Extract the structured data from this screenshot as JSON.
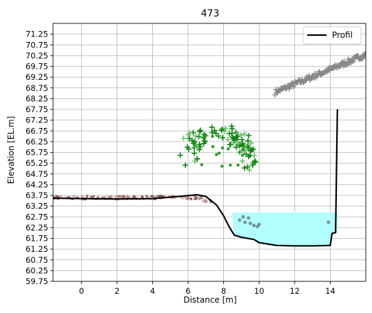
{
  "chart_data": {
    "type": "line",
    "title": "473",
    "xlabel": "Distance [m]",
    "ylabel": "Elevation [EL.m]",
    "xlim": [
      -1.6,
      16.0
    ],
    "ylim": [
      59.75,
      71.75
    ],
    "grid": true,
    "legend_position": "top-right",
    "x_ticks": [
      0,
      2,
      4,
      6,
      8,
      10,
      12,
      14
    ],
    "x_tick_labels": [
      "0",
      "2",
      "4",
      "6",
      "8",
      "10",
      "12",
      "14"
    ],
    "y_ticks": [
      59.75,
      60.25,
      60.75,
      61.25,
      61.75,
      62.25,
      62.75,
      63.25,
      63.75,
      64.25,
      64.75,
      65.25,
      65.75,
      66.25,
      66.75,
      67.25,
      67.75,
      68.25,
      68.75,
      69.25,
      69.75,
      70.25,
      70.75,
      71.25
    ],
    "y_tick_labels": [
      "59.75",
      "60.25",
      "60.75",
      "61.25",
      "61.75",
      "62.25",
      "62.75",
      "63.25",
      "63.75",
      "64.25",
      "64.75",
      "65.25",
      "65.75",
      "66.25",
      "66.75",
      "67.25",
      "67.75",
      "68.25",
      "68.75",
      "69.25",
      "69.75",
      "70.25",
      "70.75",
      "71.25"
    ],
    "series": [
      {
        "name": "Profil",
        "color": "#000000",
        "x": [
          -1.6,
          0.0,
          2.0,
          4.0,
          5.5,
          6.5,
          7.0,
          7.6,
          8.0,
          8.3,
          8.6,
          9.0,
          9.7,
          10.0,
          11.0,
          12.0,
          13.0,
          14.0,
          14.1,
          14.3,
          14.4,
          14.45
        ],
        "y": [
          63.62,
          63.6,
          63.58,
          63.6,
          63.7,
          63.78,
          63.7,
          63.3,
          62.8,
          62.3,
          61.9,
          61.8,
          61.7,
          61.55,
          61.42,
          61.4,
          61.4,
          61.42,
          61.98,
          62.02,
          67.72,
          67.72
        ]
      }
    ],
    "water_surface": {
      "color": "#b3ffff",
      "x": [
        8.5,
        14.4
      ],
      "level": 62.95,
      "bottom_x": [
        8.5,
        8.6,
        9.0,
        9.7,
        10.0,
        11.0,
        12.0,
        13.0,
        14.0,
        14.1,
        14.3,
        14.4
      ],
      "bottom_y": [
        62.55,
        61.9,
        61.8,
        61.7,
        61.55,
        61.42,
        61.4,
        61.4,
        61.42,
        61.98,
        62.02,
        62.02
      ]
    },
    "scatter_groups": [
      {
        "label": "upper-gray-points",
        "color": "#888888",
        "marker": "plus",
        "line_from": [
          10.9,
          68.55
        ],
        "line_to": [
          16.0,
          70.3
        ],
        "count": 110,
        "spread": 0.12
      },
      {
        "label": "green-plus-points",
        "color": "#0f7f0f",
        "marker": "plus",
        "arc_center": [
          7.7,
          65.9
        ],
        "arc_radius_x": 2.2,
        "arc_radius_y": 1.35,
        "count": 95
      },
      {
        "label": "left-ground-points",
        "color": "#7a4a4a",
        "marker": "dot",
        "x_range": [
          -1.6,
          7.5
        ],
        "y_center": 63.65,
        "count": 160,
        "spread": 0.08
      },
      {
        "label": "water-gray-points",
        "color": "#5d7a7a",
        "marker": "dot",
        "points": [
          [
            8.9,
            62.6
          ],
          [
            9.2,
            62.5
          ],
          [
            9.5,
            62.45
          ],
          [
            9.7,
            62.35
          ],
          [
            9.9,
            62.3
          ],
          [
            10.0,
            62.4
          ],
          [
            9.4,
            62.7
          ],
          [
            9.1,
            62.75
          ],
          [
            13.9,
            62.5
          ]
        ]
      }
    ]
  }
}
